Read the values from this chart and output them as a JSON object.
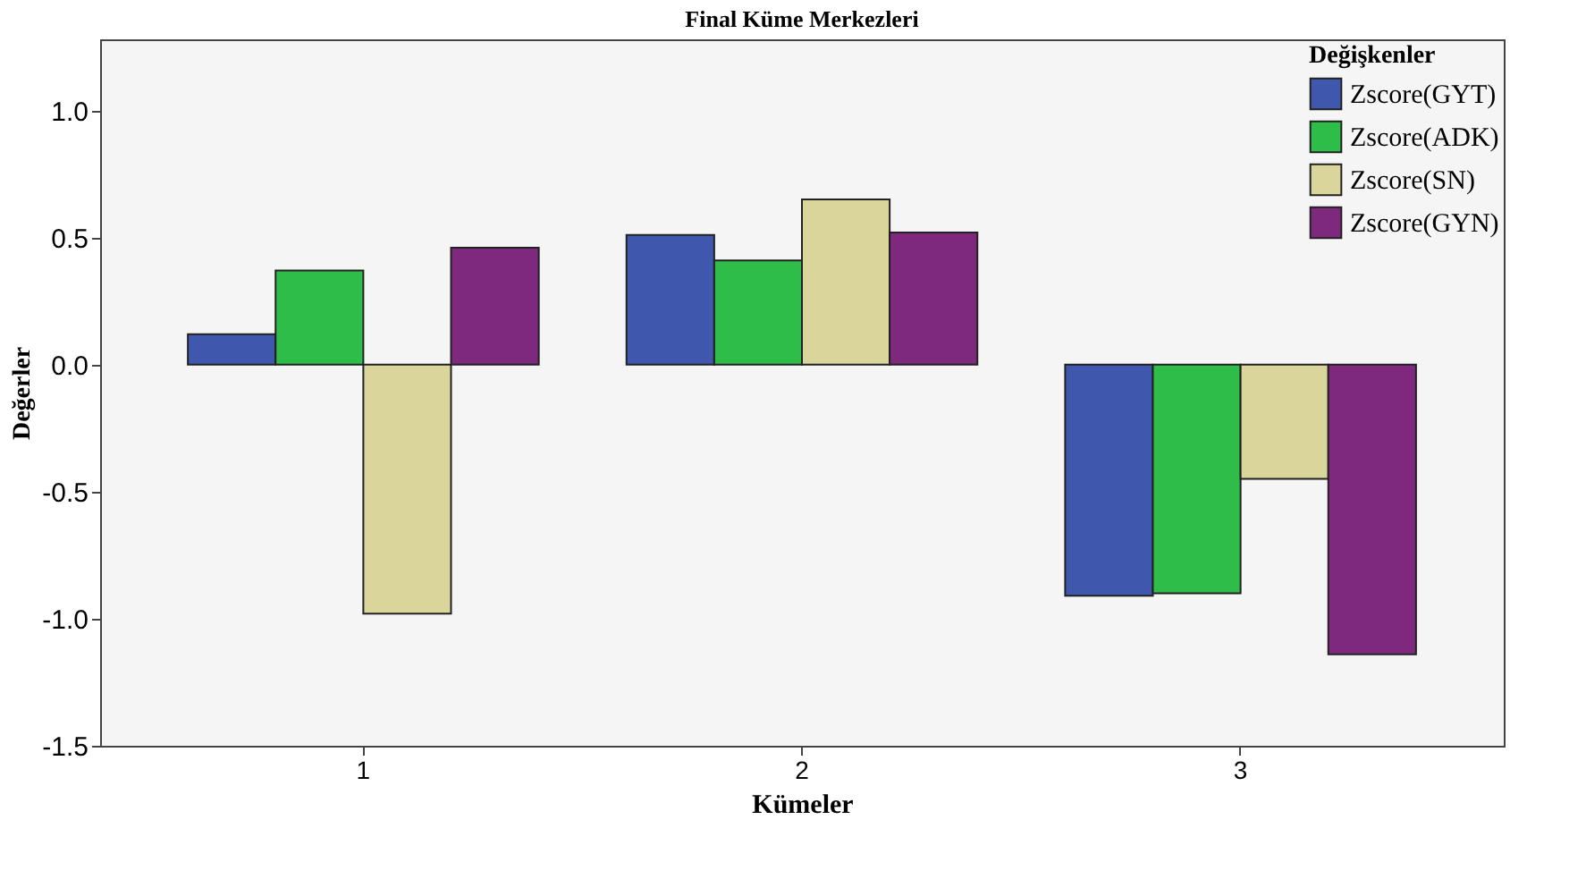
{
  "chart_data": {
    "type": "bar",
    "title": "Final Küme Merkezleri",
    "xlabel": "Kümeler",
    "ylabel": "Değerler",
    "legend_title": "Değişkenler",
    "categories": [
      "1",
      "2",
      "3"
    ],
    "series": [
      {
        "name": "Zscore(GYT)",
        "color": "#3f58ae",
        "values": [
          0.12,
          0.51,
          -0.91
        ]
      },
      {
        "name": "Zscore(ADK)",
        "color": "#2fbd49",
        "values": [
          0.37,
          0.41,
          -0.9
        ]
      },
      {
        "name": "Zscore(SN)",
        "color": "#d9d59b",
        "values": [
          -0.98,
          0.65,
          -0.45
        ]
      },
      {
        "name": "Zscore(GYN)",
        "color": "#7e287e",
        "values": [
          0.46,
          0.52,
          -1.14
        ]
      }
    ],
    "ylim": [
      -1.5,
      1.28
    ],
    "yticks": [
      {
        "value": -1.5,
        "label": "-1.5"
      },
      {
        "value": -1.0,
        "label": "-1.0"
      },
      {
        "value": -0.5,
        "label": "-0.5"
      },
      {
        "value": 0.0,
        "label": "0.0"
      },
      {
        "value": 0.5,
        "label": "0.5"
      },
      {
        "value": 1.0,
        "label": "1.0"
      }
    ],
    "grid": false,
    "legend": "top right"
  }
}
